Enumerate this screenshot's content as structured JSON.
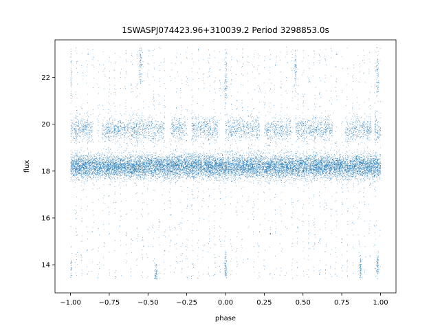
{
  "colors": {
    "points": "#1f77b4",
    "background": "#ffffff",
    "axes": "#000000"
  },
  "chart_data": {
    "type": "scatter",
    "title": "1SWASPJ074423.96+310039.2 Period 3298853.0s",
    "xlabel": "phase",
    "ylabel": "flux",
    "xlim": [
      -1.1,
      1.1
    ],
    "ylim": [
      12.8,
      23.6
    ],
    "xticks": [
      -1.0,
      -0.75,
      -0.5,
      -0.25,
      0.0,
      0.25,
      0.5,
      0.75,
      1.0
    ],
    "xtick_labels": [
      "−1.00",
      "−0.75",
      "−0.50",
      "−0.25",
      "0.00",
      "0.25",
      "0.50",
      "0.75",
      "1.00"
    ],
    "yticks": [
      14,
      16,
      18,
      20,
      22
    ],
    "ytick_labels": [
      "14",
      "16",
      "18",
      "20",
      "22"
    ],
    "grid": false,
    "legend": "none",
    "point_size": "tiny",
    "description_of_distribution": {
      "x_range": [
        -1.0,
        1.0
      ],
      "main_band_center": 18.2,
      "main_band_spread": 0.25,
      "upper_band_center": 19.8,
      "upper_band_spread": 0.25,
      "upper_band_gap_phases": [
        [
          -0.86,
          -0.8
        ],
        [
          -0.4,
          -0.35
        ],
        [
          -0.25,
          -0.22
        ],
        [
          -0.05,
          0.0
        ],
        [
          0.22,
          0.25
        ],
        [
          0.42,
          0.45
        ],
        [
          0.69,
          0.77
        ],
        [
          0.94,
          0.96
        ]
      ],
      "low_outlier_clusters": [
        [
          -1.0,
          13.9
        ],
        [
          -0.45,
          13.6
        ],
        [
          0.0,
          13.9
        ],
        [
          0.87,
          13.9
        ],
        [
          0.98,
          14.0
        ]
      ],
      "high_outlier_streaks": [
        [
          -1.0,
          22.0
        ],
        [
          -0.55,
          22.5
        ],
        [
          0.0,
          21.8
        ],
        [
          0.45,
          22.5
        ],
        [
          0.98,
          22.0
        ]
      ],
      "y_min": 13.4,
      "y_max": 23.3
    }
  }
}
